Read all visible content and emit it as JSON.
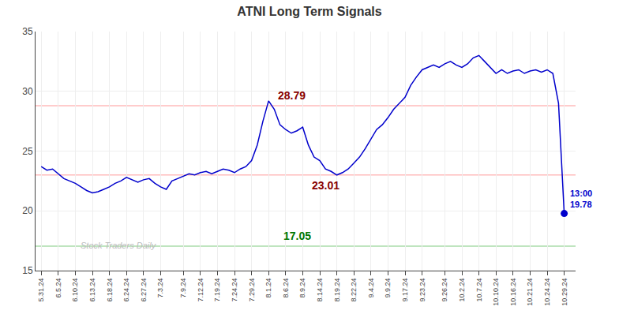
{
  "chart_data": {
    "type": "line",
    "title": "ATNI Long Term Signals",
    "title_color": "#333333",
    "categories": [
      "5.31.24",
      null,
      null,
      "6.5.24",
      null,
      null,
      "6.10.24",
      null,
      null,
      "6.13.24",
      null,
      null,
      "6.18.24",
      null,
      null,
      "6.24.24",
      null,
      null,
      "6.27.24",
      null,
      null,
      "7.3.24",
      null,
      null,
      null,
      "7.9.24",
      null,
      null,
      "7.12.24",
      null,
      null,
      "7.19.24",
      null,
      null,
      "7.24.24",
      null,
      null,
      "7.29.24",
      null,
      null,
      "8.1.24",
      null,
      null,
      "8.6.24",
      null,
      null,
      "8.9.24",
      null,
      null,
      "8.14.24",
      null,
      null,
      "8.19.24",
      null,
      null,
      "8.22.24",
      null,
      null,
      "9.4.24",
      null,
      null,
      "9.9.24",
      null,
      null,
      "9.17.24",
      null,
      null,
      "9.23.24",
      null,
      null,
      null,
      "9.26.24",
      null,
      null,
      "10.2.24",
      null,
      null,
      "10.7.24",
      null,
      null,
      "10.10.24",
      null,
      null,
      "10.16.24",
      null,
      null,
      "10.21.24",
      null,
      null,
      "10.24.24",
      null,
      null,
      "10.29.24"
    ],
    "values": [
      23.7,
      23.4,
      23.5,
      23.1,
      22.7,
      22.5,
      22.3,
      22.0,
      21.7,
      21.5,
      21.6,
      21.8,
      22.0,
      22.3,
      22.5,
      22.8,
      22.6,
      22.4,
      22.6,
      22.7,
      22.3,
      22.0,
      21.8,
      22.5,
      22.7,
      22.9,
      23.1,
      23.0,
      23.2,
      23.3,
      23.1,
      23.3,
      23.5,
      23.4,
      23.2,
      23.5,
      23.7,
      24.2,
      25.5,
      27.5,
      29.2,
      28.5,
      27.2,
      26.8,
      26.5,
      26.7,
      27.0,
      25.5,
      24.5,
      24.2,
      23.5,
      23.3,
      23.0,
      23.2,
      23.5,
      24.0,
      24.5,
      25.2,
      26.0,
      26.8,
      27.2,
      27.8,
      28.5,
      29.0,
      29.5,
      30.5,
      31.2,
      31.8,
      32.0,
      32.2,
      32.0,
      32.3,
      32.5,
      32.2,
      32.0,
      32.3,
      32.8,
      33.0,
      32.5,
      32.0,
      31.5,
      31.8,
      31.5,
      31.7,
      31.8,
      31.5,
      31.7,
      31.8,
      31.6,
      31.8,
      31.5,
      29.0,
      19.78
    ],
    "color": "#0000cc",
    "ylim": [
      15,
      35
    ],
    "yticks": [
      15,
      20,
      25,
      30,
      35
    ],
    "grid": true,
    "reference_lines": [
      {
        "value": 28.79,
        "color": "#ffbbbb",
        "label": "28.79",
        "label_color": "#880000"
      },
      {
        "value": 23.01,
        "color": "#ffbbbb",
        "label": "23.01",
        "label_color": "#880000"
      },
      {
        "value": 17.05,
        "color": "#aaddaa",
        "label": "17.05",
        "label_color": "#007700"
      }
    ],
    "end_label": [
      "13:00",
      "19.78"
    ],
    "watermark": "Stock Traders Daily",
    "watermark_color": "#bbbbbb"
  }
}
